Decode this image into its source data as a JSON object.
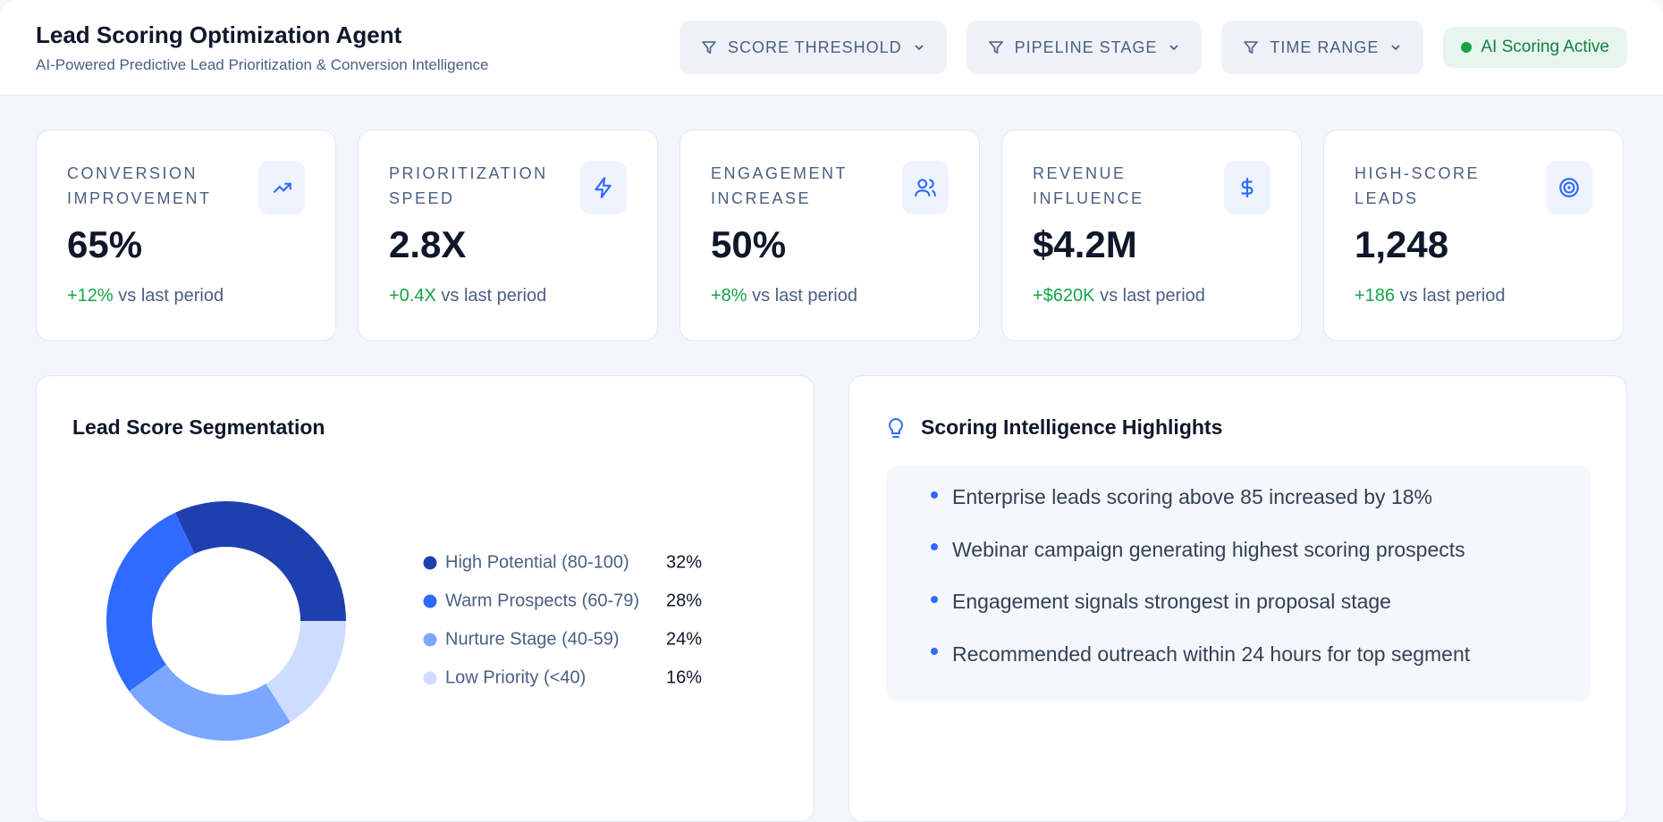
{
  "header": {
    "title": "Lead Scoring Optimization Agent",
    "subtitle": "AI-Powered Predictive Lead Prioritization & Conversion Intelligence"
  },
  "filters": [
    "SCORE THRESHOLD",
    "PIPELINE STAGE",
    "TIME RANGE"
  ],
  "status": "AI Scoring Active",
  "kpis": [
    {
      "label": "CONVERSION IMPROVEMENT",
      "value": "65%",
      "delta": "+12%",
      "suffix": "vs last period"
    },
    {
      "label": "PRIORITIZATION SPEED",
      "value": "2.8X",
      "delta": "+0.4X",
      "suffix": "vs last period"
    },
    {
      "label": "ENGAGEMENT INCREASE",
      "value": "50%",
      "delta": "+8%",
      "suffix": "vs last period"
    },
    {
      "label": "REVENUE INFLUENCE",
      "value": "$4.2M",
      "delta": "+$620K",
      "suffix": "vs last period"
    },
    {
      "label": "HIGH-SCORE LEADS",
      "value": "1,248",
      "delta": "+186",
      "suffix": "vs last period"
    }
  ],
  "chart_data": {
    "type": "donut",
    "title": "Lead Score Segmentation",
    "categories": [
      "High Potential (80-100)",
      "Warm Prospects (60-79)",
      "Nurture Stage (40-59)",
      "Low Priority (<40)"
    ],
    "values": [
      32,
      28,
      24,
      16
    ],
    "value_labels": [
      "32%",
      "28%",
      "24%",
      "16%"
    ],
    "colors": [
      "#1e40af",
      "#2f6bff",
      "#7aa7ff",
      "#cddcff"
    ]
  },
  "highlights": {
    "title": "Scoring Intelligence Highlights",
    "items": [
      "Enterprise leads scoring above 85 increased by 18%",
      "Webinar campaign generating highest scoring prospects",
      "Engagement signals strongest in proposal stage",
      "Recommended outreach within 24 hours for top segment"
    ]
  }
}
